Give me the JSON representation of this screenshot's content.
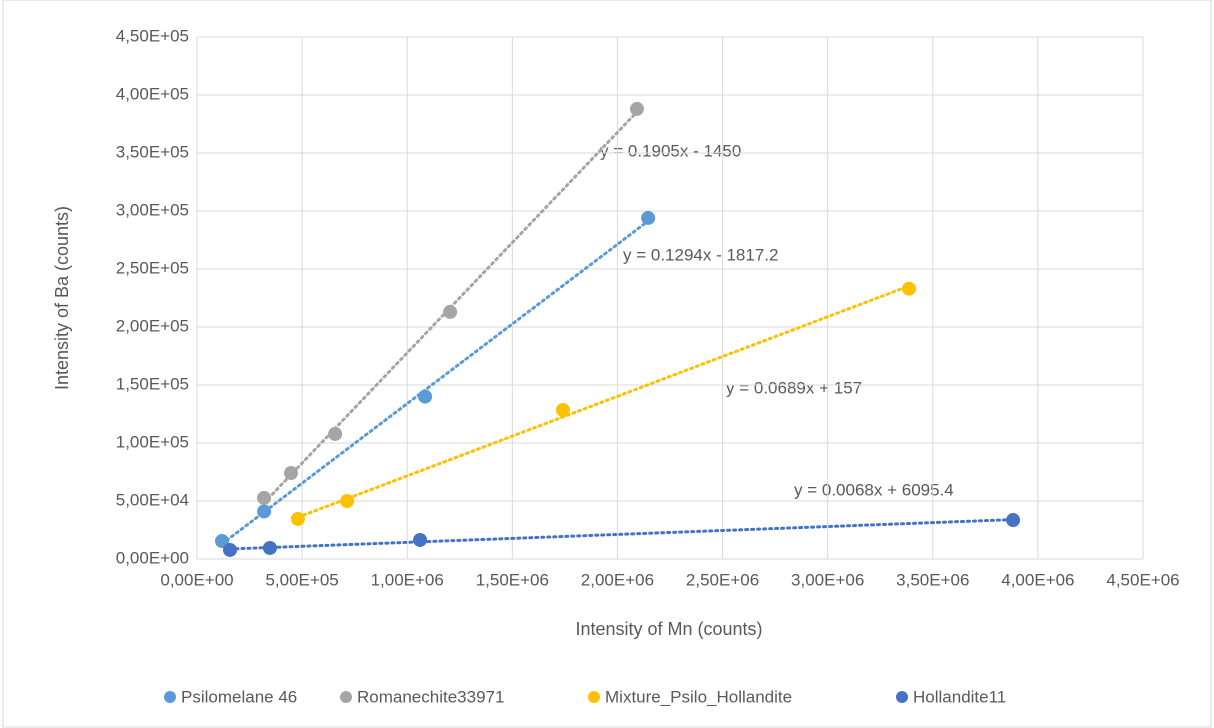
{
  "chart_data": {
    "type": "scatter",
    "xlabel": "Intensity of Mn (counts)",
    "ylabel": "Intensity of Ba (counts)",
    "xlim": [
      0,
      4500000
    ],
    "ylim": [
      0,
      450000
    ],
    "grid": true,
    "legend": "bottom",
    "trendline": "linear",
    "xticks": [
      {
        "value": 0,
        "label": "0,00E+00"
      },
      {
        "value": 500000,
        "label": "5,00E+05"
      },
      {
        "value": 1000000,
        "label": "1,00E+06"
      },
      {
        "value": 1500000,
        "label": "1,50E+06"
      },
      {
        "value": 2000000,
        "label": "2,00E+06"
      },
      {
        "value": 2500000,
        "label": "2,50E+06"
      },
      {
        "value": 3000000,
        "label": "3,00E+06"
      },
      {
        "value": 3500000,
        "label": "3,50E+06"
      },
      {
        "value": 4000000,
        "label": "4,00E+06"
      },
      {
        "value": 4500000,
        "label": "4,50E+06"
      }
    ],
    "yticks": [
      {
        "value": 0,
        "label": "0,00E+00"
      },
      {
        "value": 50000,
        "label": "5,00E+04"
      },
      {
        "value": 100000,
        "label": "1,00E+05"
      },
      {
        "value": 150000,
        "label": "1,50E+05"
      },
      {
        "value": 200000,
        "label": "2,00E+05"
      },
      {
        "value": 250000,
        "label": "2,50E+05"
      },
      {
        "value": 300000,
        "label": "3,00E+05"
      },
      {
        "value": 350000,
        "label": "3,50E+05"
      },
      {
        "value": 400000,
        "label": "4,00E+05"
      },
      {
        "value": 450000,
        "label": "4,50E+05"
      }
    ],
    "series": [
      {
        "name": "Psilomelane 46",
        "color": "#5b9bd5",
        "x": [
          119000,
          319000,
          1085000,
          2146000
        ],
        "values": [
          15500,
          41000,
          140000,
          294000
        ]
      },
      {
        "name": "Romanechite33971",
        "color": "#a5a5a5",
        "x": [
          319000,
          447000,
          657000,
          1204000,
          2093000
        ],
        "values": [
          52600,
          74100,
          107800,
          213000,
          388000
        ]
      },
      {
        "name": "Mixture_Psilo_Hollandite",
        "color": "#ffc000",
        "x": [
          480000,
          714000,
          1741000,
          3387000
        ],
        "values": [
          34500,
          50000,
          128400,
          233000
        ]
      },
      {
        "name": "Hollandite11",
        "color": "#4472c4",
        "x": [
          157000,
          347000,
          1061000,
          3882000
        ],
        "values": [
          7800,
          9500,
          16400,
          33600
        ]
      }
    ],
    "annotations": [
      "y = 0.1905x - 1450",
      "y = 0.1294x - 1817.2",
      "y = 0.0689x + 157",
      "y = 0.0068x + 6095.4"
    ]
  }
}
